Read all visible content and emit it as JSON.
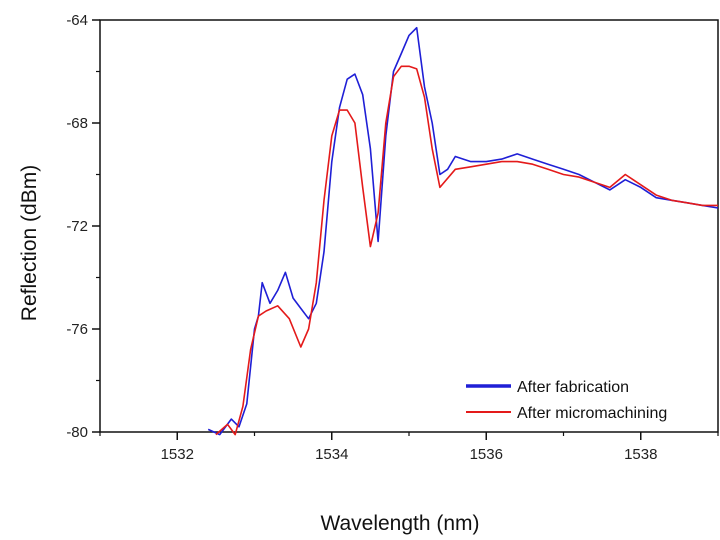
{
  "chart_data": {
    "type": "line",
    "xlabel": "Wavelength (nm)",
    "ylabel": "Reflection (dBm)",
    "xlim": [
      1531,
      1539
    ],
    "ylim": [
      -80,
      -64
    ],
    "x_ticks": [
      1532,
      1534,
      1536,
      1538
    ],
    "y_ticks": [
      -80,
      -76,
      -72,
      -68,
      -64
    ],
    "x_minor_ticks": [
      1531,
      1533,
      1535,
      1537,
      1539
    ],
    "y_minor_ticks": [
      -78,
      -74,
      -70,
      -66
    ],
    "x_tick_labels": [
      "1532",
      "1534",
      "1536",
      "1538"
    ],
    "y_tick_labels": [
      "-80",
      "-76",
      "-72",
      "-68",
      "-64"
    ],
    "grid": false,
    "legend_position": "bottom-right",
    "series": [
      {
        "name": "After fabrication",
        "color": "#1f1fd6",
        "x": [
          1532.4,
          1532.55,
          1532.7,
          1532.8,
          1532.9,
          1533.0,
          1533.05,
          1533.1,
          1533.2,
          1533.3,
          1533.4,
          1533.5,
          1533.6,
          1533.7,
          1533.8,
          1533.9,
          1534.0,
          1534.1,
          1534.2,
          1534.3,
          1534.4,
          1534.5,
          1534.6,
          1534.7,
          1534.8,
          1534.9,
          1535.0,
          1535.1,
          1535.2,
          1535.3,
          1535.4,
          1535.5,
          1535.6,
          1535.8,
          1536.0,
          1536.2,
          1536.4,
          1536.6,
          1536.8,
          1537.0,
          1537.2,
          1537.4,
          1537.6,
          1537.8,
          1538.0,
          1538.2,
          1538.4,
          1538.6,
          1538.8,
          1539.0
        ],
        "y": [
          -79.9,
          -80.1,
          -79.5,
          -79.8,
          -78.9,
          -76.0,
          -75.5,
          -74.2,
          -75.0,
          -74.5,
          -73.8,
          -74.8,
          -75.2,
          -75.6,
          -75.0,
          -73.0,
          -69.5,
          -67.4,
          -66.3,
          -66.1,
          -66.9,
          -69.0,
          -72.6,
          -68.5,
          -66.0,
          -65.3,
          -64.6,
          -64.3,
          -66.6,
          -68.0,
          -70.0,
          -69.8,
          -69.3,
          -69.5,
          -69.5,
          -69.4,
          -69.2,
          -69.4,
          -69.6,
          -69.8,
          -70.0,
          -70.3,
          -70.6,
          -70.2,
          -70.5,
          -70.9,
          -71.0,
          -71.1,
          -71.2,
          -71.3
        ]
      },
      {
        "name": "After micromachining",
        "color": "#e41a1a",
        "x": [
          1532.5,
          1532.65,
          1532.75,
          1532.85,
          1532.95,
          1533.05,
          1533.15,
          1533.3,
          1533.45,
          1533.6,
          1533.7,
          1533.8,
          1533.9,
          1534.0,
          1534.1,
          1534.2,
          1534.3,
          1534.4,
          1534.5,
          1534.6,
          1534.7,
          1534.8,
          1534.9,
          1535.0,
          1535.1,
          1535.2,
          1535.3,
          1535.4,
          1535.6,
          1535.8,
          1536.0,
          1536.2,
          1536.4,
          1536.6,
          1536.8,
          1537.0,
          1537.2,
          1537.4,
          1537.6,
          1537.8,
          1538.0,
          1538.2,
          1538.4,
          1538.6,
          1538.8,
          1539.0
        ],
        "y": [
          -80.1,
          -79.7,
          -80.1,
          -79.0,
          -76.8,
          -75.5,
          -75.3,
          -75.1,
          -75.6,
          -76.7,
          -76.0,
          -74.2,
          -71.0,
          -68.5,
          -67.5,
          -67.5,
          -68.0,
          -70.5,
          -72.8,
          -71.5,
          -68.0,
          -66.2,
          -65.8,
          -65.8,
          -65.9,
          -67.0,
          -69.0,
          -70.5,
          -69.8,
          -69.7,
          -69.6,
          -69.5,
          -69.5,
          -69.6,
          -69.8,
          -70.0,
          -70.1,
          -70.3,
          -70.5,
          -70.0,
          -70.4,
          -70.8,
          -71.0,
          -71.1,
          -71.2,
          -71.2
        ]
      }
    ]
  }
}
